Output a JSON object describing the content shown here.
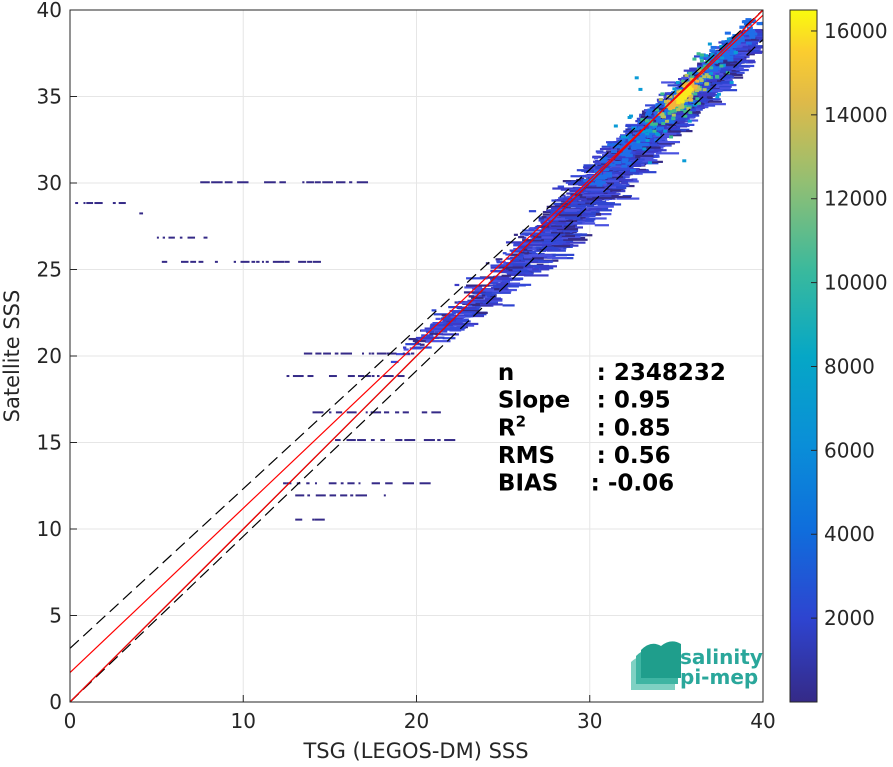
{
  "chart_data": {
    "type": "heatmap",
    "xlabel": "TSG (LEGOS-DM) SSS",
    "ylabel": "Satellite SSS",
    "xlim": [
      0,
      40
    ],
    "ylim": [
      0,
      40
    ],
    "xticks": [
      0,
      10,
      20,
      30,
      40
    ],
    "yticks": [
      0,
      5,
      10,
      15,
      20,
      25,
      30,
      35,
      40
    ],
    "grid": true,
    "colorbar": {
      "colormap": "parula",
      "range": [
        0,
        16500
      ],
      "ticks": [
        2000,
        4000,
        6000,
        8000,
        10000,
        12000,
        14000,
        16000
      ]
    },
    "density_peak": {
      "x": 35.3,
      "y": 35.2
    },
    "density_ridge": [
      {
        "x": 22.0,
        "y": 22.3,
        "sx": 1.6,
        "sy": 0.7,
        "n": 120
      },
      {
        "x": 26.0,
        "y": 25.6,
        "sx": 1.8,
        "sy": 1.0,
        "n": 260
      },
      {
        "x": 28.5,
        "y": 28.2,
        "sx": 1.5,
        "sy": 1.0,
        "n": 380
      },
      {
        "x": 31.0,
        "y": 30.8,
        "sx": 1.5,
        "sy": 1.0,
        "n": 520
      },
      {
        "x": 33.5,
        "y": 33.3,
        "sx": 1.3,
        "sy": 0.9,
        "n": 650
      },
      {
        "x": 35.5,
        "y": 35.3,
        "sx": 1.1,
        "sy": 0.7,
        "n": 800
      },
      {
        "x": 37.5,
        "y": 37.4,
        "sx": 1.0,
        "sy": 0.7,
        "n": 400
      }
    ],
    "sparse_rows": [
      {
        "y": 28.9,
        "x0": 0.3,
        "x1": 3.5
      },
      {
        "y": 28.3,
        "x0": 4.0,
        "x1": 5.0
      },
      {
        "y": 26.9,
        "x0": 4.6,
        "x1": 8.5
      },
      {
        "y": 25.5,
        "x0": 5.3,
        "x1": 14.5
      },
      {
        "y": 30.1,
        "x0": 7.0,
        "x1": 17.0
      },
      {
        "y": 20.2,
        "x0": 13.5,
        "x1": 20.0
      },
      {
        "y": 18.9,
        "x0": 12.5,
        "x1": 19.0
      },
      {
        "y": 16.8,
        "x0": 14.0,
        "x1": 21.5
      },
      {
        "y": 15.2,
        "x0": 15.3,
        "x1": 22.0
      },
      {
        "y": 12.7,
        "x0": 12.3,
        "x1": 20.5
      },
      {
        "y": 12.0,
        "x0": 13.0,
        "x1": 18.5
      },
      {
        "y": 10.6,
        "x0": 13.0,
        "x1": 14.5
      },
      {
        "y": 9.5,
        "x0": 12.3,
        "x1": 12.6
      }
    ],
    "lines": [
      {
        "name": "identity",
        "color": "#000000",
        "style": "solid",
        "x": [
          0,
          40
        ],
        "y": [
          0,
          40
        ]
      },
      {
        "name": "upper-bound",
        "color": "#000000",
        "style": "dashed",
        "x": [
          0,
          40
        ],
        "y": [
          3.1,
          40
        ]
      },
      {
        "name": "lower-bound",
        "color": "#000000",
        "style": "dashed",
        "x": [
          0,
          40
        ],
        "y": [
          0,
          38.3
        ]
      },
      {
        "name": "regression",
        "color": "#ff0000",
        "style": "solid",
        "x": [
          0,
          40
        ],
        "y": [
          1.7,
          39.7
        ]
      },
      {
        "name": "fit",
        "color": "#ff0000",
        "style": "solid",
        "x": [
          0,
          40
        ],
        "y": [
          0,
          40
        ]
      }
    ],
    "stats": [
      {
        "label": "n",
        "sup": "",
        "value": ": 2348232"
      },
      {
        "label": "Slope",
        "sup": "",
        "value": ": 0.95"
      },
      {
        "label": "R",
        "sup": "2",
        "value": ": 0.85"
      },
      {
        "label": "RMS",
        "sup": "",
        "value": ": 0.56"
      },
      {
        "label": "BIAS",
        "sup": "",
        "value": ": -0.06"
      }
    ],
    "logo": {
      "line1": "salinity",
      "line2": "pi-mep"
    }
  }
}
